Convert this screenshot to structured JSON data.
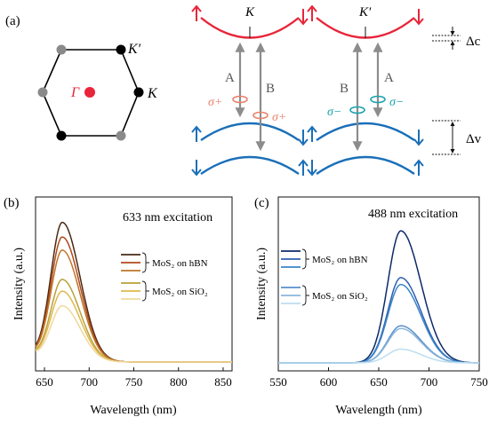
{
  "figure": {
    "panel_a": {
      "label": "(a)",
      "bz": {
        "gamma_label": "Γ",
        "k_label": "K",
        "kprime_label": "K′",
        "colors": {
          "gamma": "#e8253a",
          "k": "#000000",
          "kprime": "#8a8a8a",
          "edge": "#000000"
        }
      },
      "bands": {
        "valley_k_label": "K",
        "valley_kprime_label": "K′",
        "transition_a": "A",
        "transition_b": "B",
        "sigma_plus": "σ+",
        "sigma_minus": "σ−",
        "delta_c": "Δc",
        "delta_v": "Δv",
        "colors": {
          "conduction": "#e8253a",
          "valence": "#1a6fb8",
          "sigma_plus": "#e8826a",
          "sigma_minus": "#1aa3b0",
          "arrow": "#8c8c8c"
        }
      }
    },
    "panel_b": {
      "label": "(b)",
      "annotation": "633 nm excitation",
      "legend": {
        "hbn": "MoS₂ on hBN",
        "sio2": "MoS₂ on SiO₂"
      }
    },
    "panel_c": {
      "label": "(c)",
      "annotation": "488 nm excitation",
      "legend": {
        "hbn": "MoS₂ on hBN",
        "sio2": "MoS₂ on SiO₂"
      }
    }
  },
  "chart_data": [
    {
      "type": "line",
      "panel": "b",
      "xlabel": "Wavelength (nm)",
      "ylabel": "Intensity (a.u.)",
      "xlim": [
        640,
        860
      ],
      "xticks": [
        650,
        700,
        750,
        800,
        850
      ],
      "peak_x": 670,
      "series": [
        {
          "group": "hBN",
          "color": "#4a2a14",
          "peak": 0.95
        },
        {
          "group": "hBN",
          "color": "#b04a1a",
          "peak": 0.85
        },
        {
          "group": "hBN",
          "color": "#c0752a",
          "peak": 0.76
        },
        {
          "group": "SiO2",
          "color": "#b8a13a",
          "peak": 0.56
        },
        {
          "group": "SiO2",
          "color": "#e0b84c",
          "peak": 0.48
        },
        {
          "group": "SiO2",
          "color": "#f0d89c",
          "peak": 0.38
        }
      ]
    },
    {
      "type": "line",
      "panel": "c",
      "xlabel": "Wavelength (nm)",
      "ylabel": "Intensity (a.u.)",
      "xlim": [
        550,
        750
      ],
      "xticks": [
        550,
        600,
        650,
        700,
        750
      ],
      "peak_x": 672,
      "series": [
        {
          "group": "hBN",
          "color": "#0d2a6a",
          "peak": 0.96
        },
        {
          "group": "hBN",
          "color": "#2f5fb0",
          "peak": 0.62
        },
        {
          "group": "hBN",
          "color": "#3a86c8",
          "peak": 0.57
        },
        {
          "group": "SiO2",
          "color": "#5a8fc8",
          "peak": 0.27
        },
        {
          "group": "SiO2",
          "color": "#8ab6de",
          "peak": 0.25
        },
        {
          "group": "SiO2",
          "color": "#bdddf0",
          "peak": 0.1
        }
      ]
    }
  ]
}
